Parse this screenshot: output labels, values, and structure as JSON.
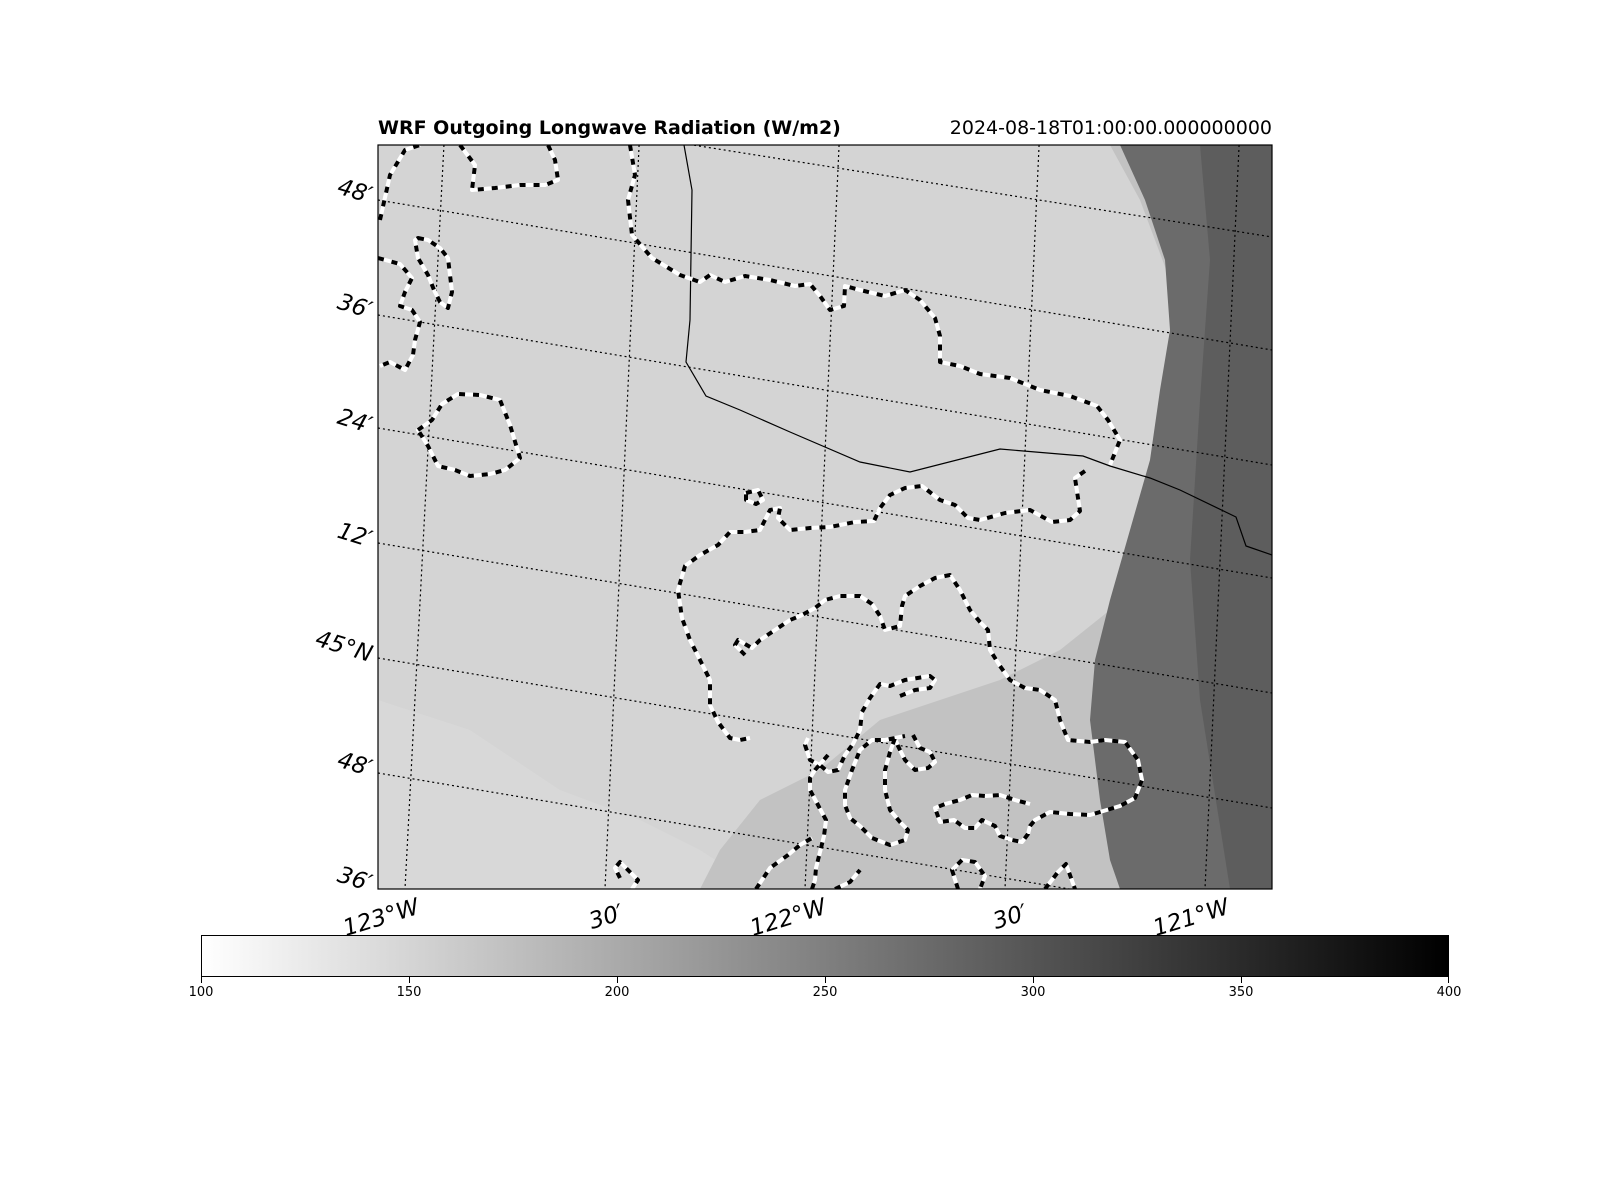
{
  "figure": {
    "title": "WRF Outgoing Longwave Radiation (W/m2)",
    "timestamp": "2024-08-18T01:00:00.000000000"
  },
  "map": {
    "lat_labels": [
      "48′",
      "36′",
      "24′",
      "12′",
      "45°N",
      "48′",
      "36′"
    ],
    "lon_labels": [
      "123°W",
      "30′",
      "122°W",
      "30′",
      "121°W"
    ],
    "colormap": "gray_r",
    "background_color": "#d4d4d4",
    "east_band_color": "#666666",
    "contour_style": "white-black dashed",
    "state_border_color": "#000000"
  },
  "colorbar": {
    "min": 100,
    "max": 400,
    "ticks": [
      "100",
      "150",
      "200",
      "250",
      "300",
      "350",
      "400"
    ]
  }
}
